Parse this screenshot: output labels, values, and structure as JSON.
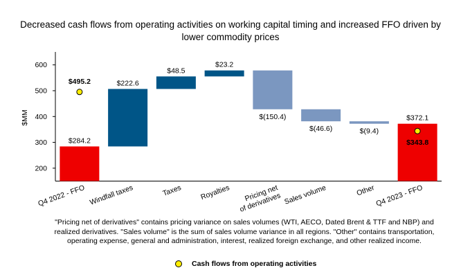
{
  "chart_data": {
    "type": "waterfall",
    "title": "Decreased cash flows from operating activities on working capital timing and increased FFO driven by lower commodity prices",
    "ylabel": "$MM",
    "ylim": [
      150,
      630
    ],
    "yticks": [
      200,
      300,
      400,
      500,
      600
    ],
    "colors": {
      "total": "#ee0000",
      "increase": "#005587",
      "decrease": "#7b97c0",
      "marker": "#ffee00"
    },
    "steps": [
      {
        "category": "Q4 2022 - FFO",
        "kind": "total",
        "start": 0,
        "end": 284.2,
        "label": "$284.2"
      },
      {
        "category": "Windfall taxes",
        "kind": "increase",
        "start": 284.2,
        "end": 506.8,
        "label": "$222.6"
      },
      {
        "category": "Taxes",
        "kind": "increase",
        "start": 506.8,
        "end": 555.3,
        "label": "$48.5"
      },
      {
        "category": "Royalties",
        "kind": "increase",
        "start": 555.3,
        "end": 578.5,
        "label": "$23.2"
      },
      {
        "category": "Pricing net of derivatives",
        "kind": "decrease",
        "start": 578.5,
        "end": 428.1,
        "label": "$(150.4)"
      },
      {
        "category": "Sales volume",
        "kind": "decrease",
        "start": 428.1,
        "end": 381.5,
        "label": "$(46.6)"
      },
      {
        "category": "Other",
        "kind": "decrease",
        "start": 381.5,
        "end": 372.1,
        "label": "$(9.4)"
      },
      {
        "category": "Q4 2023 - FFO",
        "kind": "total",
        "start": 0,
        "end": 372.1,
        "label": "$372.1"
      }
    ],
    "markers": {
      "name": "Cash flows from operating activities",
      "points": [
        {
          "category": "Q4 2022 - FFO",
          "value": 495.2,
          "label": "$495.2"
        },
        {
          "category": "Q4 2023 - FFO",
          "value": 343.8,
          "label": "$343.8"
        }
      ]
    }
  },
  "footnote": "\"Pricing net of derivatives\" contains pricing variance on sales volumes (WTI, AECO, Dated Brent & TTF and NBP) and realized derivatives. \"Sales volume\" is the sum of sales volume variance in all regions. \"Other\" contains transportation, operating expense, general and administration, interest, realized foreign exchange, and other realized income.",
  "legend": {
    "label": "Cash flows from operating activities"
  }
}
